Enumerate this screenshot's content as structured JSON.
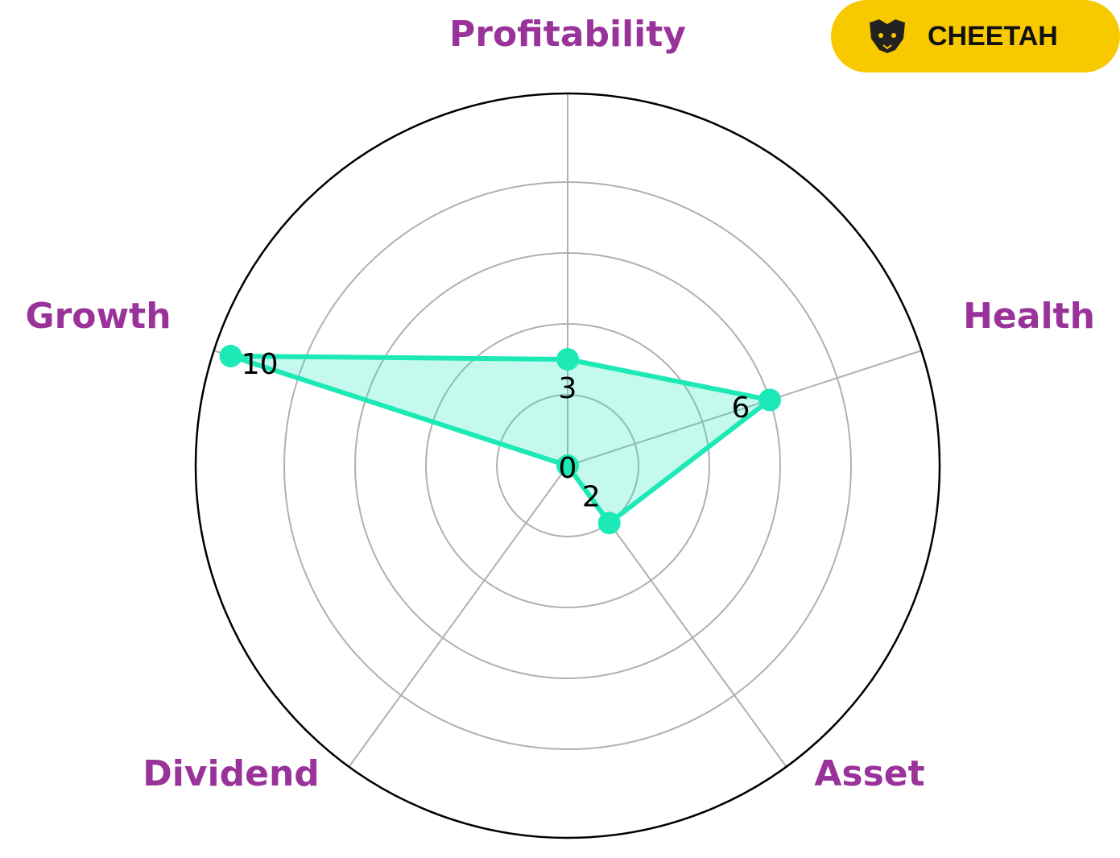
{
  "badge": "CHEETAH",
  "chart_data": {
    "type": "radar",
    "categories": [
      "Profitability",
      "Health",
      "Asset",
      "Dividend",
      "Growth"
    ],
    "values": [
      3,
      6,
      2,
      0,
      10
    ],
    "color": "#1de9b6",
    "label_color": "#993399",
    "ylim": [
      0,
      10.5
    ],
    "yticks": [
      2,
      4,
      6,
      8
    ],
    "grid": true
  }
}
